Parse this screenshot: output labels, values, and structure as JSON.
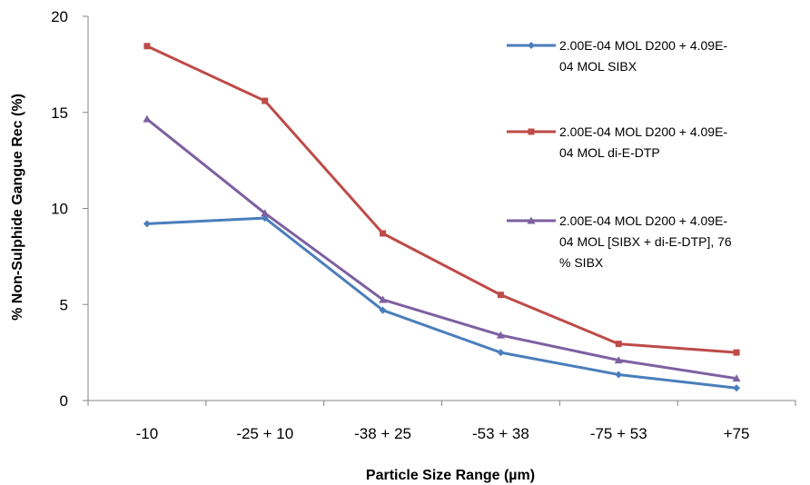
{
  "chart_data": {
    "type": "line",
    "title": "",
    "xlabel": "Particle Size Range (µm)",
    "ylabel": "% Non-Sulphide Gangue Rec (%)",
    "categories": [
      "-10",
      "-25 + 10",
      "-38 + 25",
      "-53 + 38",
      "-75 + 53",
      "+75"
    ],
    "ylim": [
      0,
      20
    ],
    "yticks": [
      0,
      5,
      10,
      15,
      20
    ],
    "grid": false,
    "legend_position": "right",
    "series": [
      {
        "name_lines": [
          "2.00E-04 MOL D200 + 4.09E-",
          "04 MOL SIBX"
        ],
        "color": "#4a7ebb",
        "marker": "diamond",
        "values": [
          9.2,
          9.5,
          4.7,
          2.5,
          1.35,
          0.65
        ]
      },
      {
        "name_lines": [
          "2.00E-04 MOL D200 + 4.09E-",
          "04 MOL di-E-DTP"
        ],
        "color": "#be4b48",
        "marker": "square",
        "values": [
          18.45,
          15.6,
          8.7,
          5.5,
          2.95,
          2.5
        ]
      },
      {
        "name_lines": [
          "2.00E-04 MOL D200 + 4.09E-",
          "04 MOL [SIBX + di-E-DTP], 76",
          "% SIBX"
        ],
        "color": "#7d60a0",
        "marker": "triangle",
        "values": [
          14.65,
          9.75,
          5.25,
          3.4,
          2.1,
          1.15
        ]
      }
    ]
  }
}
